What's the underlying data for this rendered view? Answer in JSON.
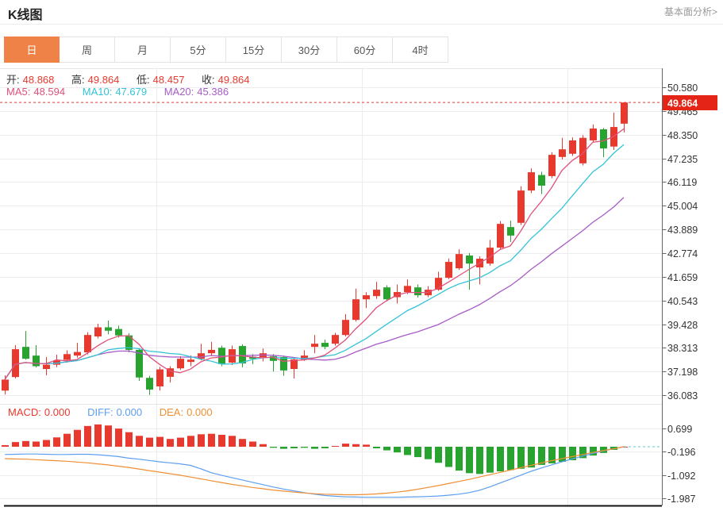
{
  "header": {
    "title": "K线图",
    "link": "基本面分析>"
  },
  "tabs": [
    {
      "label": "日",
      "selected": true
    },
    {
      "label": "周",
      "selected": false
    },
    {
      "label": "月",
      "selected": false
    },
    {
      "label": "5分",
      "selected": false
    },
    {
      "label": "15分",
      "selected": false
    },
    {
      "label": "30分",
      "selected": false
    },
    {
      "label": "60分",
      "selected": false
    },
    {
      "label": "4时",
      "selected": false
    }
  ],
  "info": {
    "open_label": "开:",
    "open": "48.868",
    "high_label": "高:",
    "high": "49.864",
    "low_label": "低:",
    "low": "48.457",
    "close_label": "收:",
    "close": "49.864",
    "ma5_label": "MA5:",
    "ma5": "48.594",
    "ma10_label": "MA10:",
    "ma10": "47.679",
    "ma20_label": "MA20:",
    "ma20": "45.386"
  },
  "macd_info": {
    "macd_label": "MACD:",
    "macd": "0.000",
    "diff_label": "DIFF:",
    "diff": "0.000",
    "dea_label": "DEA:",
    "dea": "0.000"
  },
  "colors": {
    "up": "#e8392e",
    "down": "#28a32f",
    "ma5": "#e0517a",
    "ma10": "#33c4d8",
    "ma20": "#a75cc8",
    "diff": "#5c9ff0",
    "dea": "#ef8f35",
    "accent": "#ef8246",
    "badge": "#e32416",
    "axis": "#666666",
    "grid": "#ececec",
    "label": "#333333",
    "link": "#999999",
    "dash_teal": "#66c9ce"
  },
  "chart_data": {
    "type": "candlestick_with_macd",
    "title": "K线图",
    "period_selected": "日",
    "current_price": 49.864,
    "price_ticks": [
      50.58,
      49.465,
      48.35,
      47.235,
      46.119,
      45.004,
      43.889,
      42.774,
      41.659,
      40.543,
      39.428,
      38.313,
      37.198,
      36.083
    ],
    "macd_ticks": [
      0.699,
      -0.196,
      -1.092,
      -1.987
    ],
    "ma_periods": [
      5,
      10,
      20
    ],
    "candle_format": "[open, high, low, close]",
    "candles": [
      [
        36.3,
        37.02,
        36.12,
        36.82
      ],
      [
        36.94,
        38.44,
        36.87,
        38.25
      ],
      [
        38.36,
        39.11,
        37.76,
        37.8
      ],
      [
        37.95,
        38.44,
        37.39,
        37.45
      ],
      [
        37.32,
        37.88,
        37.02,
        37.52
      ],
      [
        37.52,
        37.99,
        37.4,
        37.72
      ],
      [
        37.75,
        38.2,
        37.62,
        38.02
      ],
      [
        37.95,
        38.55,
        37.85,
        38.12
      ],
      [
        38.1,
        39.05,
        38.0,
        38.92
      ],
      [
        38.85,
        39.45,
        38.76,
        39.28
      ],
      [
        39.28,
        39.6,
        38.95,
        39.12
      ],
      [
        39.2,
        39.36,
        38.8,
        38.9
      ],
      [
        38.9,
        39.0,
        38.1,
        38.22
      ],
      [
        38.22,
        38.3,
        36.76,
        36.92
      ],
      [
        36.9,
        37.0,
        36.1,
        36.35
      ],
      [
        36.5,
        37.42,
        36.3,
        37.3
      ],
      [
        36.95,
        37.45,
        36.68,
        37.35
      ],
      [
        37.35,
        37.92,
        37.28,
        37.8
      ],
      [
        37.65,
        37.96,
        37.45,
        37.76
      ],
      [
        37.8,
        38.5,
        37.72,
        38.06
      ],
      [
        38.06,
        38.6,
        37.92,
        38.22
      ],
      [
        38.32,
        38.42,
        37.45,
        37.55
      ],
      [
        37.62,
        38.42,
        37.5,
        38.25
      ],
      [
        38.4,
        38.48,
        37.4,
        37.58
      ],
      [
        37.9,
        38.02,
        37.55,
        37.8
      ],
      [
        37.88,
        38.28,
        37.68,
        38.06
      ],
      [
        37.92,
        38.02,
        37.2,
        37.7
      ],
      [
        37.88,
        37.95,
        37.0,
        37.25
      ],
      [
        37.32,
        37.85,
        36.87,
        37.77
      ],
      [
        37.77,
        38.2,
        37.7,
        37.95
      ],
      [
        38.36,
        38.92,
        38.06,
        38.51
      ],
      [
        38.55,
        38.7,
        38.25,
        38.36
      ],
      [
        38.51,
        39.02,
        38.42,
        38.92
      ],
      [
        38.92,
        39.9,
        38.85,
        39.63
      ],
      [
        39.63,
        41.1,
        39.55,
        40.6
      ],
      [
        40.6,
        40.93,
        40.18,
        40.79
      ],
      [
        40.75,
        41.42,
        40.62,
        41.05
      ],
      [
        41.16,
        41.26,
        40.5,
        40.6
      ],
      [
        40.7,
        41.3,
        40.4,
        40.94
      ],
      [
        40.94,
        41.53,
        40.85,
        41.23
      ],
      [
        41.16,
        41.3,
        40.68,
        40.79
      ],
      [
        40.79,
        41.22,
        40.7,
        41.05
      ],
      [
        41.05,
        41.9,
        41.0,
        41.61
      ],
      [
        41.61,
        42.52,
        41.55,
        42.36
      ],
      [
        42.06,
        42.95,
        41.98,
        42.73
      ],
      [
        42.66,
        42.78,
        41.05,
        42.28
      ],
      [
        42.1,
        42.62,
        41.3,
        42.51
      ],
      [
        42.28,
        43.4,
        42.18,
        43.03
      ],
      [
        43.03,
        44.28,
        42.95,
        44.15
      ],
      [
        44.0,
        44.3,
        43.3,
        43.6
      ],
      [
        44.2,
        45.92,
        44.1,
        45.72
      ],
      [
        45.72,
        46.76,
        45.6,
        46.58
      ],
      [
        46.45,
        46.6,
        45.55,
        45.95
      ],
      [
        46.4,
        47.52,
        46.3,
        47.4
      ],
      [
        47.3,
        48.2,
        47.18,
        47.66
      ],
      [
        47.45,
        48.22,
        47.35,
        48.08
      ],
      [
        47.0,
        48.32,
        46.9,
        48.2
      ],
      [
        48.08,
        48.83,
        47.98,
        48.64
      ],
      [
        48.6,
        48.66,
        47.29,
        47.7
      ],
      [
        47.79,
        49.39,
        47.63,
        48.71
      ],
      [
        48.868,
        49.864,
        48.457,
        49.864
      ]
    ],
    "macd": {
      "hist": [
        0.06,
        0.18,
        0.22,
        0.2,
        0.26,
        0.36,
        0.5,
        0.65,
        0.8,
        0.86,
        0.82,
        0.7,
        0.56,
        0.42,
        0.35,
        0.38,
        0.3,
        0.35,
        0.42,
        0.48,
        0.5,
        0.46,
        0.42,
        0.3,
        0.2,
        0.1,
        -0.04,
        -0.08,
        -0.06,
        -0.04,
        -0.08,
        -0.06,
        0.03,
        0.12,
        0.1,
        0.08,
        -0.06,
        -0.14,
        -0.22,
        -0.32,
        -0.4,
        -0.48,
        -0.62,
        -0.78,
        -0.92,
        -1.02,
        -1.05,
        -1.0,
        -0.95,
        -0.9,
        -0.85,
        -0.8,
        -0.7,
        -0.64,
        -0.58,
        -0.52,
        -0.44,
        -0.34,
        -0.24,
        -0.12,
        0.0
      ],
      "diff": [
        -0.3,
        -0.29,
        -0.28,
        -0.28,
        -0.29,
        -0.3,
        -0.3,
        -0.29,
        -0.29,
        -0.31,
        -0.34,
        -0.38,
        -0.44,
        -0.48,
        -0.53,
        -0.58,
        -0.62,
        -0.66,
        -0.72,
        -0.85,
        -1.0,
        -1.1,
        -1.19,
        -1.28,
        -1.37,
        -1.46,
        -1.55,
        -1.63,
        -1.7,
        -1.77,
        -1.83,
        -1.88,
        -1.91,
        -1.93,
        -1.94,
        -1.95,
        -1.95,
        -1.95,
        -1.95,
        -1.94,
        -1.93,
        -1.92,
        -1.9,
        -1.87,
        -1.83,
        -1.77,
        -1.68,
        -1.55,
        -1.4,
        -1.25,
        -1.1,
        -0.95,
        -0.82,
        -0.7,
        -0.58,
        -0.47,
        -0.36,
        -0.26,
        -0.16,
        -0.08,
        0.0
      ],
      "dea": [
        -0.46,
        -0.47,
        -0.48,
        -0.5,
        -0.52,
        -0.54,
        -0.56,
        -0.59,
        -0.62,
        -0.66,
        -0.7,
        -0.75,
        -0.8,
        -0.86,
        -0.92,
        -0.98,
        -1.04,
        -1.1,
        -1.17,
        -1.24,
        -1.31,
        -1.38,
        -1.45,
        -1.51,
        -1.57,
        -1.62,
        -1.67,
        -1.71,
        -1.75,
        -1.78,
        -1.81,
        -1.83,
        -1.84,
        -1.85,
        -1.85,
        -1.84,
        -1.82,
        -1.79,
        -1.75,
        -1.7,
        -1.64,
        -1.57,
        -1.5,
        -1.42,
        -1.34,
        -1.26,
        -1.17,
        -1.08,
        -0.99,
        -0.9,
        -0.81,
        -0.72,
        -0.63,
        -0.54,
        -0.46,
        -0.38,
        -0.3,
        -0.22,
        -0.15,
        -0.08,
        0.0
      ]
    }
  }
}
